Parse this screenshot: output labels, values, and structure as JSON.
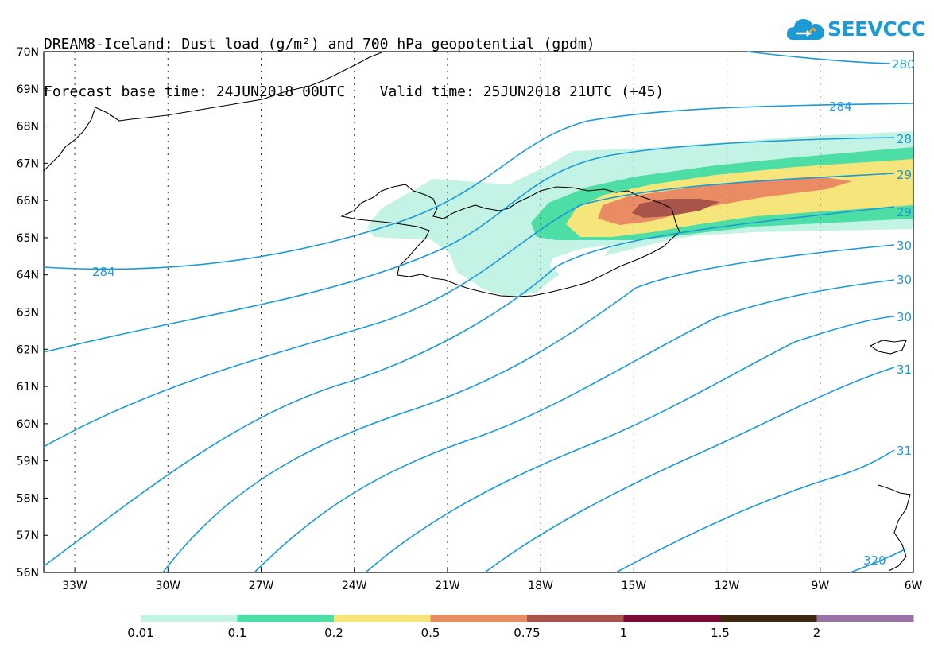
{
  "title": {
    "line1": "DREAM8-Iceland: Dust load (g/m²) and 700 hPa geopotential (gpdm)",
    "line2": "Forecast base time: 24JUN2018 00UTC    Valid time: 25JUN2018 21UTC (+45)"
  },
  "logo": {
    "text": "SEEVCCC",
    "icon": "cloud-icon",
    "color": "#1c9ad6"
  },
  "map": {
    "lat_ticks": [
      "70N",
      "69N",
      "68N",
      "67N",
      "66N",
      "65N",
      "64N",
      "63N",
      "62N",
      "61N",
      "60N",
      "59N",
      "58N",
      "57N",
      "56N"
    ],
    "lon_ticks": [
      "33W",
      "30W",
      "27W",
      "24W",
      "21W",
      "18W",
      "15W",
      "12W",
      "9W",
      "6W"
    ],
    "lat_range": [
      56,
      70
    ],
    "lon_range": [
      -34,
      -6
    ],
    "contour_color": "#1c9ad6",
    "contour_labels": [
      "280",
      "284",
      "284",
      "28",
      "29",
      "29",
      "30",
      "30",
      "30",
      "31",
      "31",
      "320"
    ]
  },
  "colorbar": {
    "labels": [
      "0.01",
      "0.1",
      "0.2",
      "0.5",
      "0.75",
      "1",
      "1.5",
      "2"
    ],
    "colors": [
      "#c3f3e4",
      "#4cdea4",
      "#f5e57b",
      "#e98c64",
      "#a8544a",
      "#7d0c36",
      "#3d2a10",
      "#9a72a6"
    ]
  }
}
